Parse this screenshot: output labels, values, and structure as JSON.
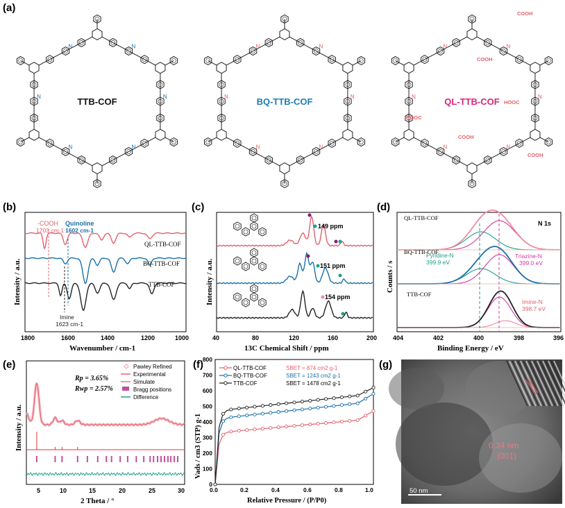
{
  "panel_labels": {
    "a": "(a)",
    "b": "(b)",
    "c": "(c)",
    "d": "(d)",
    "e": "(e)",
    "f": "(f)",
    "g": "(g)"
  },
  "structures": [
    {
      "name": "TTB-COF",
      "color": "#111111"
    },
    {
      "name": "BQ-TTB-COF",
      "color": "#1a7fb5"
    },
    {
      "name": "QL-TTB-COF",
      "color": "#d6267a"
    }
  ],
  "atom_labels": {
    "n": "N",
    "cooh": "COOH",
    "hooc": "HOOC"
  },
  "colors": {
    "ql": "#e4606b",
    "bq": "#1a6fa8",
    "ttb": "#222222",
    "teal": "#1ba08a",
    "magenta": "#d13aa3",
    "pink": "#f08aa0",
    "purple": "#8a1a6a"
  },
  "panel_b": {
    "xlabel": "Wavenumber / cm-1",
    "ylabel": "Intensity / a.u.",
    "ticks": [
      "1800",
      "1600",
      "1400",
      "1200",
      "1000"
    ],
    "series_labels": [
      "QL-TTB-COF",
      "BQ-TTB-COF",
      "TTB-COF"
    ],
    "ann_cooh_1": "-COOH",
    "ann_cooh_2": "1703 cm-1",
    "ann_quin_1": "Quinoline",
    "ann_quin_2": "1602 cm-1",
    "ann_imine_1": "Imine",
    "ann_imine_2": "1623 cm-1"
  },
  "panel_c": {
    "xlabel": "13C Chemical Shift / ppm",
    "ylabel": "Intensity / a.u.",
    "ticks": [
      "40",
      "80",
      "120",
      "160",
      "200"
    ],
    "ann": [
      "149 ppm",
      "151 ppm",
      "154 ppm"
    ]
  },
  "panel_d": {
    "xlabel": "Binding Energy / eV",
    "ylabel": "Counts / s",
    "ticks": [
      "404",
      "402",
      "400",
      "398",
      "396"
    ],
    "title": "N 1s",
    "labels": [
      "QL-TTB-COF",
      "BQ-TTB-COF",
      "TTB-COF"
    ],
    "pyr_1": "Pyridine-N",
    "pyr_2": "399.9 eV",
    "tri_1": "Triazine-N",
    "tri_2": "399.0 eV",
    "imi_1": "Imine-N",
    "imi_2": "398.7 eV"
  },
  "panel_e": {
    "xlabel": "2 Theta / °",
    "ylabel": "Intensity / a.u.",
    "ticks": [
      "5",
      "10",
      "15",
      "20",
      "25",
      "30"
    ],
    "rp": "Rp = 3.65%",
    "rwp": "Rwp = 2.57%",
    "legend": [
      "Pawley Refined",
      "Experimental",
      "Simulate",
      "Bragg positions",
      "Difference"
    ]
  },
  "panel_f": {
    "xlabel": "Relative Pressure / (P/P0)",
    "ylabel": "Vads / cm3 (STP) g-1",
    "xticks": [
      "0.0",
      "0.2",
      "0.4",
      "0.6",
      "0.8",
      "1.0"
    ],
    "yticks": [
      "0",
      "100",
      "200",
      "300",
      "400",
      "500",
      "600",
      "700",
      "800"
    ],
    "legend": [
      {
        "name": "QL-TTB-COF",
        "sbet": "SBET = 874 cm2 g-1"
      },
      {
        "name": "BQ-TTB-COF",
        "sbet": "SBET = 1243 cm2 g-1"
      },
      {
        "name": "TTB-COF",
        "sbet": "SBET = 1478 cm2 g-1"
      }
    ]
  },
  "panel_g": {
    "d": "0.34 nm",
    "hkl": "(001)",
    "scale": "50 nm"
  }
}
